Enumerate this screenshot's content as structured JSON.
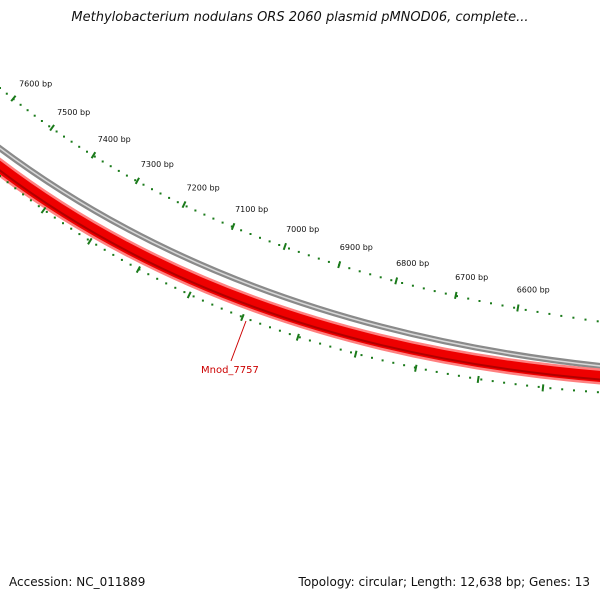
{
  "title": "Methylobacterium nodulans ORS 2060 plasmid pMNOD06, complete...",
  "ticks": [
    {
      "label": "7600 bp"
    },
    {
      "label": "7500 bp"
    },
    {
      "label": "7400 bp"
    },
    {
      "label": "7300 bp"
    },
    {
      "label": "7200 bp"
    },
    {
      "label": "7100 bp"
    },
    {
      "label": "7000 bp"
    },
    {
      "label": "6900 bp"
    },
    {
      "label": "6800 bp"
    },
    {
      "label": "6700 bp"
    },
    {
      "label": "6600 bp"
    }
  ],
  "gene_label": "Mnod_7757",
  "footer": {
    "accession": "Accession: NC_011889",
    "summary": "Topology: circular; Length: 12,638 bp; Genes: 13"
  },
  "colors": {
    "tick": "#1a7a1a",
    "backbone": "#808080",
    "gene": "#ee0000",
    "gene_label": "#cc0000"
  }
}
